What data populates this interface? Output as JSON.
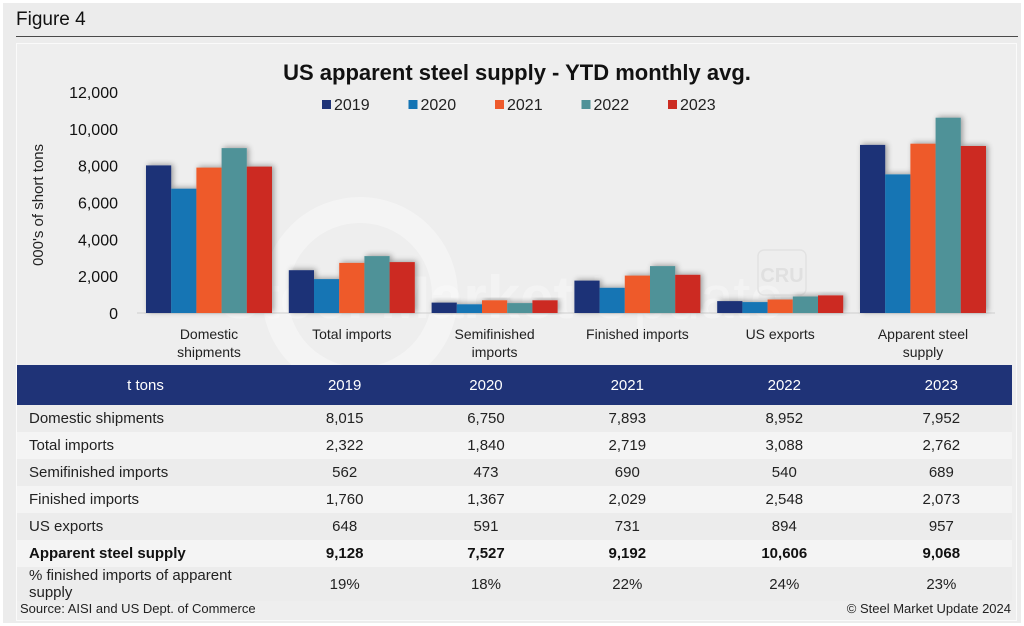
{
  "figure": {
    "label": "Figure 4"
  },
  "chart_data": {
    "type": "bar",
    "title": "US apparent steel supply - YTD monthly avg.",
    "xlabel": "",
    "ylabel": "000's of short tons",
    "ylim": [
      0,
      12000
    ],
    "yticks": [
      0,
      2000,
      4000,
      6000,
      8000,
      10000,
      12000
    ],
    "ytick_labels": [
      "0",
      "2,000",
      "4,000",
      "6,000",
      "8,000",
      "10,000",
      "12,000"
    ],
    "grid": false,
    "legend_position": "top-center",
    "categories": [
      [
        "Domestic",
        "shipments"
      ],
      [
        "Total imports"
      ],
      [
        "Semifinished",
        "imports"
      ],
      [
        "Finished imports"
      ],
      [
        "US exports"
      ],
      [
        "Apparent steel",
        "supply"
      ]
    ],
    "series": [
      {
        "name": "2019",
        "color": "#1f3377",
        "values": [
          8015,
          2322,
          562,
          1760,
          648,
          9128
        ]
      },
      {
        "name": "2020",
        "color": "#1474b4",
        "values": [
          6750,
          1840,
          473,
          1367,
          591,
          7527
        ]
      },
      {
        "name": "2021",
        "color": "#ee5a2c",
        "values": [
          7893,
          2719,
          690,
          2029,
          731,
          9192
        ]
      },
      {
        "name": "2022",
        "color": "#4f9298",
        "values": [
          8952,
          3088,
          540,
          2548,
          894,
          10606
        ]
      },
      {
        "name": "2023",
        "color": "#cc2c22",
        "values": [
          7952,
          2762,
          689,
          2073,
          957,
          9068
        ]
      }
    ],
    "watermark": {
      "text_bold": "Steel Market",
      "text_light": "Update",
      "badge": "CRU"
    }
  },
  "table": {
    "header": [
      "t tons",
      "2019",
      "2020",
      "2021",
      "2022",
      "2023"
    ],
    "rows": [
      {
        "label": "Domestic shipments",
        "values": [
          "8,015",
          "6,750",
          "7,893",
          "8,952",
          "7,952"
        ],
        "bold": false
      },
      {
        "label": "Total imports",
        "values": [
          "2,322",
          "1,840",
          "2,719",
          "3,088",
          "2,762"
        ],
        "bold": false
      },
      {
        "label": "Semifinished imports",
        "values": [
          "562",
          "473",
          "690",
          "540",
          "689"
        ],
        "bold": false
      },
      {
        "label": "Finished imports",
        "values": [
          "1,760",
          "1,367",
          "2,029",
          "2,548",
          "2,073"
        ],
        "bold": false
      },
      {
        "label": "US exports",
        "values": [
          "648",
          "591",
          "731",
          "894",
          "957"
        ],
        "bold": false
      },
      {
        "label": "Apparent steel supply",
        "values": [
          "9,128",
          "7,527",
          "9,192",
          "10,606",
          "9,068"
        ],
        "bold": true
      },
      {
        "label": "% finished imports of apparent supply",
        "values": [
          "19%",
          "18%",
          "22%",
          "24%",
          "23%"
        ],
        "bold": false
      }
    ]
  },
  "footer": {
    "source": "Source: AISI and US Dept. of Commerce",
    "copyright": "© Steel Market Update 2024"
  }
}
